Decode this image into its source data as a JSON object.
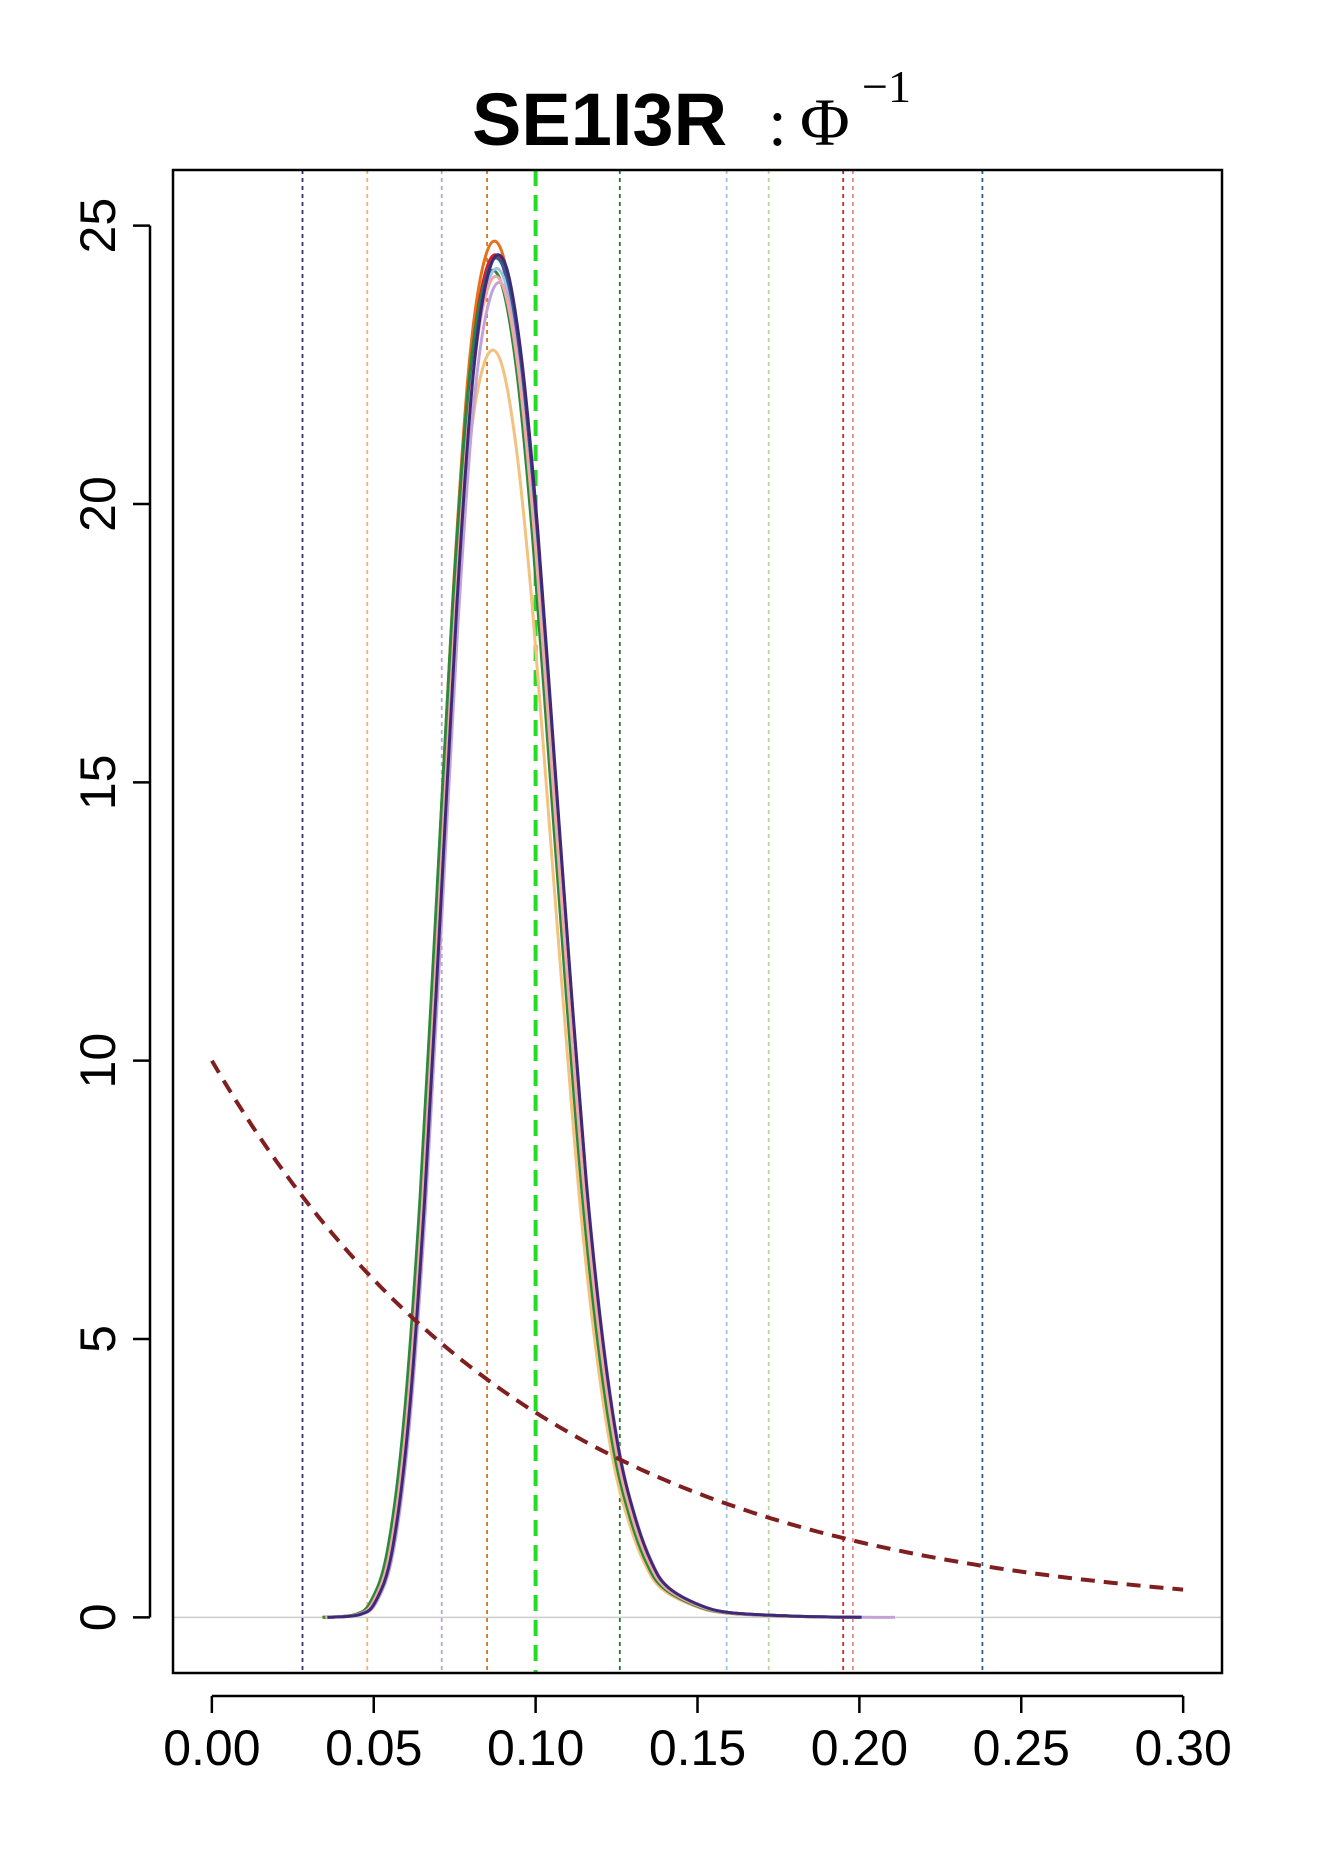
{
  "chart_data": {
    "type": "line",
    "title": {
      "bold": "SE1I3R",
      "separator": ":",
      "symbol": "Φ",
      "superscript": "−1"
    },
    "xlabel": "",
    "ylabel": "",
    "xlim": [
      -0.012,
      0.312
    ],
    "ylim": [
      -1.0,
      26.0
    ],
    "x_ticks": [
      0.0,
      0.05,
      0.1,
      0.15,
      0.2,
      0.25,
      0.3
    ],
    "x_tick_labels": [
      "0.00",
      "0.05",
      "0.10",
      "0.15",
      "0.20",
      "0.25",
      "0.30"
    ],
    "y_ticks": [
      0,
      5,
      10,
      15,
      20,
      25
    ],
    "y_tick_labels": [
      "0",
      "5",
      "10",
      "15",
      "20",
      "25"
    ],
    "grid": false,
    "zero_line": {
      "y": 0,
      "color": "#cccccc"
    },
    "vertical_lines": [
      {
        "x": 0.028,
        "color": "#3f2a7a",
        "style": "dotted"
      },
      {
        "x": 0.048,
        "color": "#f5b06a",
        "style": "dotted"
      },
      {
        "x": 0.071,
        "color": "#b7a3d3",
        "style": "dotted"
      },
      {
        "x": 0.085,
        "color": "#e0701a",
        "style": "dotted"
      },
      {
        "x": 0.1,
        "color": "#22dd22",
        "style": "dashed-bold"
      },
      {
        "x": 0.126,
        "color": "#1f7a2a",
        "style": "dotted"
      },
      {
        "x": 0.159,
        "color": "#9ec3e6",
        "style": "dotted"
      },
      {
        "x": 0.172,
        "color": "#b8d8a0",
        "style": "dotted"
      },
      {
        "x": 0.195,
        "color": "#d62020",
        "style": "dotted"
      },
      {
        "x": 0.198,
        "color": "#f08a8a",
        "style": "dotted"
      },
      {
        "x": 0.238,
        "color": "#2b5f8f",
        "style": "dotted"
      }
    ],
    "prior_curve": {
      "type": "exponential",
      "rate": 10,
      "x_range": [
        0.0,
        0.3
      ],
      "color": "#7f1f1f",
      "style": "dashed"
    },
    "series_shape": {
      "x": [
        0.035,
        0.045,
        0.05,
        0.055,
        0.06,
        0.065,
        0.07,
        0.075,
        0.08,
        0.085,
        0.09,
        0.095,
        0.1,
        0.105,
        0.11,
        0.115,
        0.12,
        0.125,
        0.13,
        0.135,
        0.14,
        0.15,
        0.16,
        0.18,
        0.2,
        0.21
      ],
      "y": [
        0.0,
        0.05,
        0.3,
        1.2,
        3.5,
        7.5,
        12.8,
        18.2,
        22.3,
        24.2,
        24.3,
        22.6,
        19.5,
        15.5,
        11.5,
        7.8,
        5.0,
        3.0,
        1.8,
        1.0,
        0.55,
        0.22,
        0.08,
        0.02,
        0.0,
        0.0
      ]
    },
    "series": [
      {
        "color": "#5e3fa8",
        "peak": 24.3,
        "peak_x": 0.0895,
        "x_shift": 0.0005,
        "y_scale": 1.0,
        "x_end": 0.21
      },
      {
        "color": "#e8701a",
        "peak": 24.6,
        "peak_x": 0.0885,
        "x_shift": -0.0005,
        "y_scale": 1.01,
        "x_end": 0.205
      },
      {
        "color": "#f4c17e",
        "peak": 22.6,
        "peak_x": 0.088,
        "x_shift": -0.001,
        "y_scale": 0.93,
        "x_end": 0.2
      },
      {
        "color": "#d42020",
        "peak": 24.3,
        "peak_x": 0.0885,
        "x_shift": -0.0003,
        "y_scale": 1.0,
        "x_end": 0.2
      },
      {
        "color": "#2a8a3a",
        "peak": 24.0,
        "peak_x": 0.0878,
        "x_shift": -0.0008,
        "y_scale": 0.99,
        "x_end": 0.195
      },
      {
        "color": "#9ec3e6",
        "peak": 24.1,
        "peak_x": 0.089,
        "x_shift": 0.0002,
        "y_scale": 0.99,
        "x_end": 0.2
      },
      {
        "color": "#c2a3d8",
        "peak": 23.8,
        "peak_x": 0.0895,
        "x_shift": 0.001,
        "y_scale": 0.98,
        "x_end": 0.22
      },
      {
        "color": "#2b5f8f",
        "peak": 24.2,
        "peak_x": 0.089,
        "x_shift": 0.0004,
        "y_scale": 1.0,
        "x_end": 0.205
      },
      {
        "color": "#f0a8a8",
        "peak": 23.9,
        "peak_x": 0.089,
        "x_shift": 0.0,
        "y_scale": 0.985,
        "x_end": 0.2
      },
      {
        "color": "#3f2a7a",
        "peak": 24.3,
        "peak_x": 0.0893,
        "x_shift": 0.0007,
        "y_scale": 1.0,
        "x_end": 0.21
      }
    ]
  }
}
